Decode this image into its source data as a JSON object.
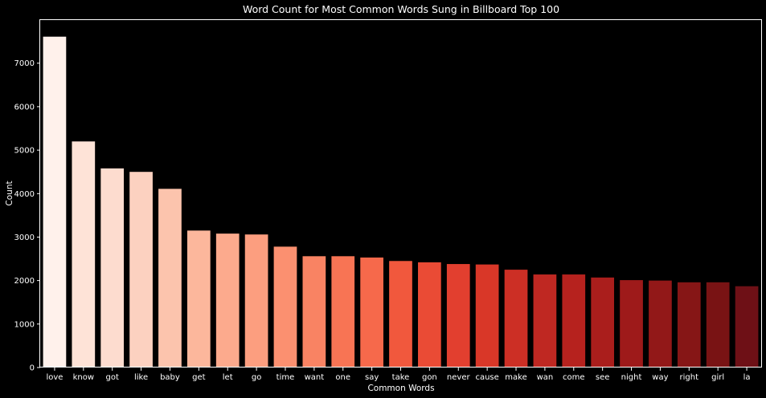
{
  "chart_data": {
    "type": "bar",
    "title": "Word Count for Most Common Words Sung in Billboard Top 100",
    "xlabel": "Common Words",
    "ylabel": "Count",
    "ylim": [
      0,
      7992
    ],
    "yticks": [
      0,
      1000,
      2000,
      3000,
      4000,
      5000,
      6000,
      7000
    ],
    "categories": [
      "love",
      "know",
      "got",
      "like",
      "baby",
      "get",
      "let",
      "go",
      "time",
      "want",
      "one",
      "say",
      "take",
      "gon",
      "never",
      "cause",
      "make",
      "wan",
      "come",
      "see",
      "night",
      "way",
      "right",
      "girl",
      "la"
    ],
    "values": [
      7610,
      5200,
      4580,
      4500,
      4110,
      3150,
      3080,
      3060,
      2780,
      2560,
      2560,
      2530,
      2450,
      2420,
      2380,
      2370,
      2250,
      2140,
      2140,
      2070,
      2010,
      2000,
      1960,
      1960,
      1870
    ],
    "colors": [
      "#fff1eb",
      "#fee3d7",
      "#fddccf",
      "#fcd1c0",
      "#fcc4ad",
      "#fcb79c",
      "#fcaa8d",
      "#fc9e7f",
      "#fb9070",
      "#f98363",
      "#f87454",
      "#f6694b",
      "#f1583d",
      "#ea4b35",
      "#e23f2f",
      "#d93728",
      "#cc2f25",
      "#bf2822",
      "#b6221e",
      "#aa1e1c",
      "#9e1a1a",
      "#921818",
      "#861616",
      "#791314",
      "#6e1016"
    ],
    "grid": false,
    "background": "#000000",
    "text_color": "#ffffff"
  }
}
